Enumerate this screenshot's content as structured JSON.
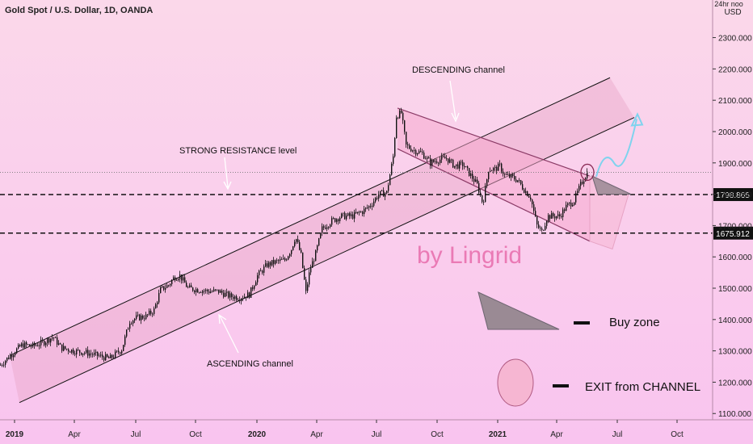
{
  "header": {
    "symbol_label": "Gold Spot / U.S. Dollar, 1D, OANDA"
  },
  "axis_header": {
    "line1": "24hr noo",
    "line2": "USD"
  },
  "watermark": "by Lingrid",
  "annotations": {
    "descending": "DESCENDING channel",
    "ascending": "ASCENDING channel",
    "resistance": "STRONG RESISTANCE level"
  },
  "legend": {
    "buy_zone": "Buy zone",
    "exit": "EXIT from CHANNEL"
  },
  "colors": {
    "bg_top": "#fbd8ea",
    "bg_bottom": "#f9c7ee",
    "candle_up": "#111111",
    "candle_down": "#111111",
    "channel_fill": "#e8a6c8",
    "buy_zone_fill": "#9a8a94",
    "exit_fill": "#f6b6d2",
    "arrow": "#7fd3ee",
    "watermark": "#ea7ab5"
  },
  "chart_data": {
    "type": "candlestick",
    "instrument": "Gold Spot / U.S. Dollar",
    "timeframe": "1D",
    "source": "OANDA",
    "ylim": [
      1080,
      2420
    ],
    "y_ticks": [
      1100,
      1200,
      1300,
      1400,
      1500,
      1600,
      1700,
      1800,
      1900,
      2000,
      2100,
      2200,
      2300
    ],
    "y_tick_labels": [
      "1100.000",
      "1200.000",
      "1300.000",
      "1400.000",
      "1500.000",
      "1600.000",
      "1700.000",
      "1800.000",
      "1900.000",
      "2000.000",
      "2100.000",
      "2200.000",
      "2300.000"
    ],
    "x_tick_labels": [
      "2019",
      "Apr",
      "Jul",
      "Oct",
      "2020",
      "Apr",
      "Jul",
      "Oct",
      "2021",
      "Apr",
      "Jul",
      "Oct"
    ],
    "horizontal_levels": [
      {
        "value": 1798.865,
        "label": "1798.865",
        "style": "dashed"
      },
      {
        "value": 1675.912,
        "label": "1675.912",
        "style": "dashed"
      },
      {
        "value": 1870,
        "style": "dotted"
      }
    ],
    "price_path": [
      [
        0,
        1255
      ],
      [
        14,
        1290
      ],
      [
        27,
        1320
      ],
      [
        40,
        1315
      ],
      [
        55,
        1330
      ],
      [
        65,
        1345
      ],
      [
        75,
        1310
      ],
      [
        90,
        1300
      ],
      [
        105,
        1295
      ],
      [
        120,
        1285
      ],
      [
        135,
        1275
      ],
      [
        150,
        1305
      ],
      [
        160,
        1395
      ],
      [
        168,
        1405
      ],
      [
        180,
        1410
      ],
      [
        190,
        1430
      ],
      [
        198,
        1495
      ],
      [
        208,
        1510
      ],
      [
        215,
        1535
      ],
      [
        222,
        1540
      ],
      [
        232,
        1500
      ],
      [
        245,
        1495
      ],
      [
        258,
        1490
      ],
      [
        270,
        1490
      ],
      [
        283,
        1475
      ],
      [
        296,
        1470
      ],
      [
        308,
        1480
      ],
      [
        318,
        1540
      ],
      [
        330,
        1575
      ],
      [
        342,
        1585
      ],
      [
        352,
        1590
      ],
      [
        360,
        1625
      ],
      [
        365,
        1665
      ],
      [
        372,
        1605
      ],
      [
        378,
        1485
      ],
      [
        383,
        1560
      ],
      [
        390,
        1610
      ],
      [
        398,
        1690
      ],
      [
        410,
        1715
      ],
      [
        422,
        1730
      ],
      [
        435,
        1730
      ],
      [
        448,
        1745
      ],
      [
        458,
        1765
      ],
      [
        468,
        1800
      ],
      [
        478,
        1805
      ],
      [
        486,
        1920
      ],
      [
        490,
        2050
      ],
      [
        496,
        2060
      ],
      [
        502,
        1955
      ],
      [
        512,
        1940
      ],
      [
        522,
        1930
      ],
      [
        532,
        1900
      ],
      [
        542,
        1910
      ],
      [
        552,
        1915
      ],
      [
        562,
        1890
      ],
      [
        572,
        1895
      ],
      [
        582,
        1860
      ],
      [
        590,
        1830
      ],
      [
        597,
        1770
      ],
      [
        604,
        1880
      ],
      [
        612,
        1880
      ],
      [
        618,
        1890
      ],
      [
        624,
        1860
      ],
      [
        632,
        1855
      ],
      [
        640,
        1845
      ],
      [
        648,
        1815
      ],
      [
        656,
        1790
      ],
      [
        664,
        1700
      ],
      [
        670,
        1680
      ],
      [
        677,
        1730
      ],
      [
        684,
        1730
      ],
      [
        692,
        1730
      ],
      [
        700,
        1760
      ],
      [
        710,
        1780
      ],
      [
        718,
        1830
      ],
      [
        726,
        1870
      ]
    ],
    "ascending_channel": {
      "upper": [
        [
          12,
          1285
        ],
        [
          755,
          2172
        ]
      ],
      "lower": [
        [
          24,
          1135
        ],
        [
          785,
          2045
        ]
      ],
      "right_edge": [
        [
          755,
          2172
        ],
        [
          785,
          2045
        ]
      ]
    },
    "descending_channel": {
      "upper": [
        [
          492,
          2075
        ],
        [
          730,
          1858
        ]
      ],
      "lower": [
        [
          492,
          1945
        ],
        [
          730,
          1650
        ]
      ]
    },
    "projection_zone": {
      "points": [
        [
          730,
          1858
        ],
        [
          778,
          1800
        ],
        [
          758,
          1625
        ],
        [
          730,
          1650
        ]
      ]
    },
    "projected_path": [
      [
        738,
        1856
      ],
      [
        760,
        1900
      ],
      [
        778,
        1890
      ],
      [
        788,
        2040
      ]
    ]
  }
}
